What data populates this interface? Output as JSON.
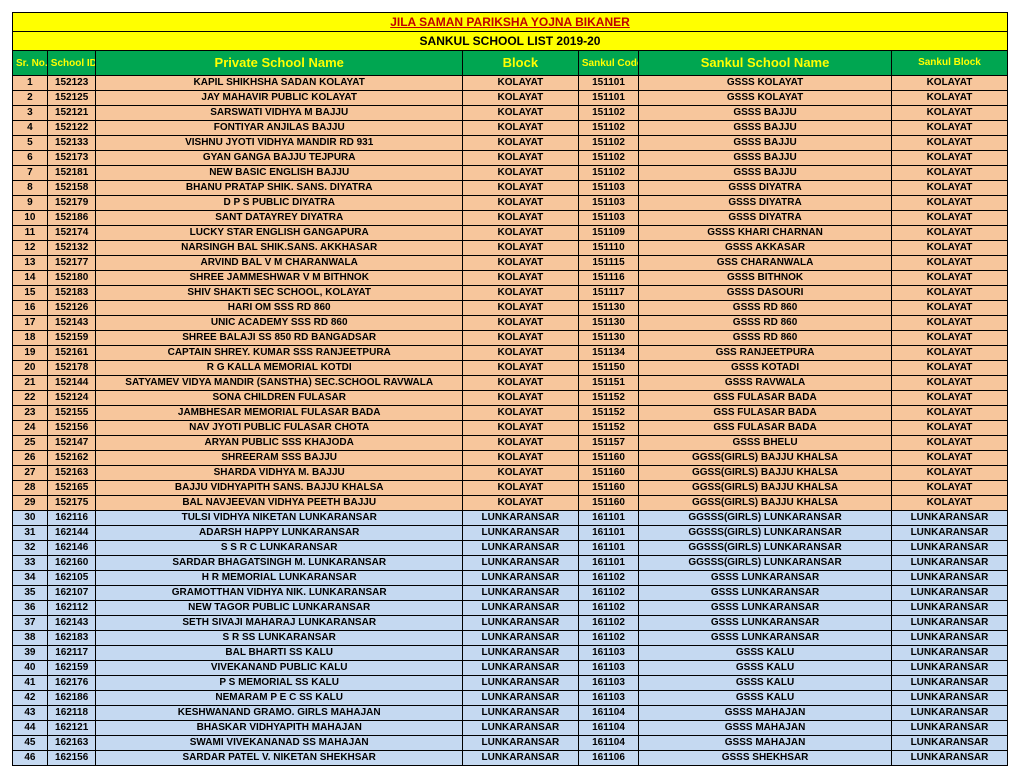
{
  "title": "JILA SAMAN PARIKSHA YOJNA BIKANER",
  "subtitle": "SANKUL SCHOOL LIST  2019-20",
  "headers": {
    "srno": "Sr. No.",
    "schoolid": "School ID",
    "privatename": "Private School Name",
    "block": "Block",
    "sankulcode": "Sankul Code",
    "sankulname": "Sankul School Name",
    "sankulblock": "Sankul Block"
  },
  "colors": {
    "title_bg": "#ffff00",
    "title_fg": "#c00000",
    "header_bg": "#00a651",
    "header_fg": "#ffff00",
    "row_bg_1": "#f7c69c",
    "row_bg_2": "#c5d9f1"
  },
  "rows": [
    {
      "sr": "1",
      "sid": "152123",
      "pname": "KAPIL SHIKHSHA SADAN KOLAYAT",
      "block": "KOLAYAT",
      "scode": "151101",
      "sname": "GSSS KOLAYAT",
      "sblock": "KOLAYAT",
      "bg": "bg1"
    },
    {
      "sr": "2",
      "sid": "152125",
      "pname": "JAY MAHAVIR PUBLIC KOLAYAT",
      "block": "KOLAYAT",
      "scode": "151101",
      "sname": "GSSS KOLAYAT",
      "sblock": "KOLAYAT",
      "bg": "bg1"
    },
    {
      "sr": "3",
      "sid": "152121",
      "pname": "SARSWATI VIDHYA M BAJJU",
      "block": "KOLAYAT",
      "scode": "151102",
      "sname": "GSSS BAJJU",
      "sblock": "KOLAYAT",
      "bg": "bg1"
    },
    {
      "sr": "4",
      "sid": "152122",
      "pname": "FONTIYAR ANJILAS BAJJU",
      "block": "KOLAYAT",
      "scode": "151102",
      "sname": "GSSS BAJJU",
      "sblock": "KOLAYAT",
      "bg": "bg1"
    },
    {
      "sr": "5",
      "sid": "152133",
      "pname": "VISHNU JYOTI VIDHYA MANDIR RD 931",
      "block": "KOLAYAT",
      "scode": "151102",
      "sname": "GSSS BAJJU",
      "sblock": "KOLAYAT",
      "bg": "bg1"
    },
    {
      "sr": "6",
      "sid": "152173",
      "pname": "GYAN GANGA BAJJU TEJPURA",
      "block": "KOLAYAT",
      "scode": "151102",
      "sname": "GSSS BAJJU",
      "sblock": "KOLAYAT",
      "bg": "bg1"
    },
    {
      "sr": "7",
      "sid": "152181",
      "pname": "NEW BASIC ENGLISH BAJJU",
      "block": "KOLAYAT",
      "scode": "151102",
      "sname": "GSSS BAJJU",
      "sblock": "KOLAYAT",
      "bg": "bg1"
    },
    {
      "sr": "8",
      "sid": "152158",
      "pname": "BHANU PRATAP SHIK. SANS. DIYATRA",
      "block": "KOLAYAT",
      "scode": "151103",
      "sname": "GSSS DIYATRA",
      "sblock": "KOLAYAT",
      "bg": "bg1"
    },
    {
      "sr": "9",
      "sid": "152179",
      "pname": "D P S PUBLIC DIYATRA",
      "block": "KOLAYAT",
      "scode": "151103",
      "sname": "GSSS DIYATRA",
      "sblock": "KOLAYAT",
      "bg": "bg1"
    },
    {
      "sr": "10",
      "sid": "152186",
      "pname": "SANT DATAYREY DIYATRA",
      "block": "KOLAYAT",
      "scode": "151103",
      "sname": "GSSS DIYATRA",
      "sblock": "KOLAYAT",
      "bg": "bg1"
    },
    {
      "sr": "11",
      "sid": "152174",
      "pname": "LUCKY STAR ENGLISH GANGAPURA",
      "block": "KOLAYAT",
      "scode": "151109",
      "sname": "GSSS KHARI CHARNAN",
      "sblock": "KOLAYAT",
      "bg": "bg1"
    },
    {
      "sr": "12",
      "sid": "152132",
      "pname": "NARSINGH BAL SHIK.SANS. AKKHASAR",
      "block": "KOLAYAT",
      "scode": "151110",
      "sname": "GSSS AKKASAR",
      "sblock": "KOLAYAT",
      "bg": "bg1"
    },
    {
      "sr": "13",
      "sid": "152177",
      "pname": "ARVIND BAL V M CHARANWALA",
      "block": "KOLAYAT",
      "scode": "151115",
      "sname": "GSS CHARANWALA",
      "sblock": "KOLAYAT",
      "bg": "bg1"
    },
    {
      "sr": "14",
      "sid": "152180",
      "pname": "SHREE JAMMESHWAR V M BITHNOK",
      "block": "KOLAYAT",
      "scode": "151116",
      "sname": "GSSS BITHNOK",
      "sblock": "KOLAYAT",
      "bg": "bg1"
    },
    {
      "sr": "15",
      "sid": "152183",
      "pname": "SHIV SHAKTI SEC SCHOOL, KOLAYAT",
      "block": "KOLAYAT",
      "scode": "151117",
      "sname": "GSSS DASOURI",
      "sblock": "KOLAYAT",
      "bg": "bg1"
    },
    {
      "sr": "16",
      "sid": "152126",
      "pname": "HARI OM SSS RD 860",
      "block": "KOLAYAT",
      "scode": "151130",
      "sname": "GSSS RD 860",
      "sblock": "KOLAYAT",
      "bg": "bg1"
    },
    {
      "sr": "17",
      "sid": "152143",
      "pname": "UNIC ACADEMY SSS RD 860",
      "block": "KOLAYAT",
      "scode": "151130",
      "sname": "GSSS RD 860",
      "sblock": "KOLAYAT",
      "bg": "bg1"
    },
    {
      "sr": "18",
      "sid": "152159",
      "pname": "SHREE BALAJI SS 850 RD BANGADSAR",
      "block": "KOLAYAT",
      "scode": "151130",
      "sname": "GSSS RD 860",
      "sblock": "KOLAYAT",
      "bg": "bg1"
    },
    {
      "sr": "19",
      "sid": "152161",
      "pname": "CAPTAIN SHREY. KUMAR SSS RANJEETPURA",
      "block": "KOLAYAT",
      "scode": "151134",
      "sname": "GSS RANJEETPURA",
      "sblock": "KOLAYAT",
      "bg": "bg1"
    },
    {
      "sr": "20",
      "sid": "152178",
      "pname": "R G KALLA MEMORIAL KOTDI",
      "block": "KOLAYAT",
      "scode": "151150",
      "sname": "GSSS KOTADI",
      "sblock": "KOLAYAT",
      "bg": "bg1"
    },
    {
      "sr": "21",
      "sid": "152144",
      "pname": "SATYAMEV VIDYA MANDIR (SANSTHA) SEC.SCHOOL RAVWALA",
      "block": "KOLAYAT",
      "scode": "151151",
      "sname": "GSSS RAVWALA",
      "sblock": "KOLAYAT",
      "bg": "bg1"
    },
    {
      "sr": "22",
      "sid": "152124",
      "pname": "SONA CHILDREN FULASAR",
      "block": "KOLAYAT",
      "scode": "151152",
      "sname": "GSS FULASAR BADA",
      "sblock": "KOLAYAT",
      "bg": "bg1"
    },
    {
      "sr": "23",
      "sid": "152155",
      "pname": "JAMBHESAR MEMORIAL FULASAR BADA",
      "block": "KOLAYAT",
      "scode": "151152",
      "sname": "GSS FULASAR BADA",
      "sblock": "KOLAYAT",
      "bg": "bg1"
    },
    {
      "sr": "24",
      "sid": "152156",
      "pname": "NAV JYOTI PUBLIC FULASAR CHOTA",
      "block": "KOLAYAT",
      "scode": "151152",
      "sname": "GSS FULASAR BADA",
      "sblock": "KOLAYAT",
      "bg": "bg1"
    },
    {
      "sr": "25",
      "sid": "152147",
      "pname": "ARYAN PUBLIC SSS KHAJODA",
      "block": "KOLAYAT",
      "scode": "151157",
      "sname": "GSSS BHELU",
      "sblock": "KOLAYAT",
      "bg": "bg1"
    },
    {
      "sr": "26",
      "sid": "152162",
      "pname": "SHREERAM SSS BAJJU",
      "block": "KOLAYAT",
      "scode": "151160",
      "sname": "GGSS(GIRLS) BAJJU KHALSA",
      "sblock": "KOLAYAT",
      "bg": "bg1"
    },
    {
      "sr": "27",
      "sid": "152163",
      "pname": "SHARDA VIDHYA M. BAJJU",
      "block": "KOLAYAT",
      "scode": "151160",
      "sname": "GGSS(GIRLS) BAJJU KHALSA",
      "sblock": "KOLAYAT",
      "bg": "bg1"
    },
    {
      "sr": "28",
      "sid": "152165",
      "pname": "BAJJU VIDHYAPITH SANS. BAJJU KHALSA",
      "block": "KOLAYAT",
      "scode": "151160",
      "sname": "GGSS(GIRLS) BAJJU KHALSA",
      "sblock": "KOLAYAT",
      "bg": "bg1"
    },
    {
      "sr": "29",
      "sid": "152175",
      "pname": "BAL NAVJEEVAN VIDHYA PEETH BAJJU",
      "block": "KOLAYAT",
      "scode": "151160",
      "sname": "GGSS(GIRLS) BAJJU KHALSA",
      "sblock": "KOLAYAT",
      "bg": "bg1"
    },
    {
      "sr": "30",
      "sid": "162116",
      "pname": "TULSI VIDHYA NIKETAN LUNKARANSAR",
      "block": "LUNKARANSAR",
      "scode": "161101",
      "sname": "GGSSS(GIRLS) LUNKARANSAR",
      "sblock": "LUNKARANSAR",
      "bg": "bg2"
    },
    {
      "sr": "31",
      "sid": "162144",
      "pname": "ADARSH HAPPY LUNKARANSAR",
      "block": "LUNKARANSAR",
      "scode": "161101",
      "sname": "GGSSS(GIRLS) LUNKARANSAR",
      "sblock": "LUNKARANSAR",
      "bg": "bg2"
    },
    {
      "sr": "32",
      "sid": "162146",
      "pname": "S S R C LUNKARANSAR",
      "block": "LUNKARANSAR",
      "scode": "161101",
      "sname": "GGSSS(GIRLS) LUNKARANSAR",
      "sblock": "LUNKARANSAR",
      "bg": "bg2"
    },
    {
      "sr": "33",
      "sid": "162160",
      "pname": "SARDAR BHAGATSINGH M. LUNKARANSAR",
      "block": "LUNKARANSAR",
      "scode": "161101",
      "sname": "GGSSS(GIRLS) LUNKARANSAR",
      "sblock": "LUNKARANSAR",
      "bg": "bg2"
    },
    {
      "sr": "34",
      "sid": "162105",
      "pname": "H R MEMORIAL LUNKARANSAR",
      "block": "LUNKARANSAR",
      "scode": "161102",
      "sname": "GSSS LUNKARANSAR",
      "sblock": "LUNKARANSAR",
      "bg": "bg2"
    },
    {
      "sr": "35",
      "sid": "162107",
      "pname": "GRAMOTTHAN VIDHYA NIK. LUNKARANSAR",
      "block": "LUNKARANSAR",
      "scode": "161102",
      "sname": "GSSS LUNKARANSAR",
      "sblock": "LUNKARANSAR",
      "bg": "bg2"
    },
    {
      "sr": "36",
      "sid": "162112",
      "pname": "NEW TAGOR PUBLIC LUNKARANSAR",
      "block": "LUNKARANSAR",
      "scode": "161102",
      "sname": "GSSS LUNKARANSAR",
      "sblock": "LUNKARANSAR",
      "bg": "bg2"
    },
    {
      "sr": "37",
      "sid": "162143",
      "pname": "SETH SIVAJI MAHARAJ LUNKARANSAR",
      "block": "LUNKARANSAR",
      "scode": "161102",
      "sname": "GSSS LUNKARANSAR",
      "sblock": "LUNKARANSAR",
      "bg": "bg2"
    },
    {
      "sr": "38",
      "sid": "162183",
      "pname": "S R SS LUNKARANSAR",
      "block": "LUNKARANSAR",
      "scode": "161102",
      "sname": "GSSS LUNKARANSAR",
      "sblock": "LUNKARANSAR",
      "bg": "bg2"
    },
    {
      "sr": "39",
      "sid": "162117",
      "pname": "BAL BHARTI SS KALU",
      "block": "LUNKARANSAR",
      "scode": "161103",
      "sname": "GSSS KALU",
      "sblock": "LUNKARANSAR",
      "bg": "bg2"
    },
    {
      "sr": "40",
      "sid": "162159",
      "pname": "VIVEKANAND PUBLIC KALU",
      "block": "LUNKARANSAR",
      "scode": "161103",
      "sname": "GSSS KALU",
      "sblock": "LUNKARANSAR",
      "bg": "bg2"
    },
    {
      "sr": "41",
      "sid": "162176",
      "pname": "P S MEMORIAL SS KALU",
      "block": "LUNKARANSAR",
      "scode": "161103",
      "sname": "GSSS KALU",
      "sblock": "LUNKARANSAR",
      "bg": "bg2"
    },
    {
      "sr": "42",
      "sid": "162186",
      "pname": "NEMARAM P E C SS KALU",
      "block": "LUNKARANSAR",
      "scode": "161103",
      "sname": "GSSS KALU",
      "sblock": "LUNKARANSAR",
      "bg": "bg2"
    },
    {
      "sr": "43",
      "sid": "162118",
      "pname": "KESHWANAND GRAMO. GIRLS MAHAJAN",
      "block": "LUNKARANSAR",
      "scode": "161104",
      "sname": "GSSS MAHAJAN",
      "sblock": "LUNKARANSAR",
      "bg": "bg2"
    },
    {
      "sr": "44",
      "sid": "162121",
      "pname": "BHASKAR VIDHYAPITH MAHAJAN",
      "block": "LUNKARANSAR",
      "scode": "161104",
      "sname": "GSSS MAHAJAN",
      "sblock": "LUNKARANSAR",
      "bg": "bg2"
    },
    {
      "sr": "45",
      "sid": "162163",
      "pname": "SWAMI VIVEKANANAD SS MAHAJAN",
      "block": "LUNKARANSAR",
      "scode": "161104",
      "sname": "GSSS MAHAJAN",
      "sblock": "LUNKARANSAR",
      "bg": "bg2"
    },
    {
      "sr": "46",
      "sid": "162156",
      "pname": "SARDAR PATEL V. NIKETAN SHEKHSAR",
      "block": "LUNKARANSAR",
      "scode": "161106",
      "sname": "GSSS SHEKHSAR",
      "sblock": "LUNKARANSAR",
      "bg": "bg2"
    }
  ]
}
